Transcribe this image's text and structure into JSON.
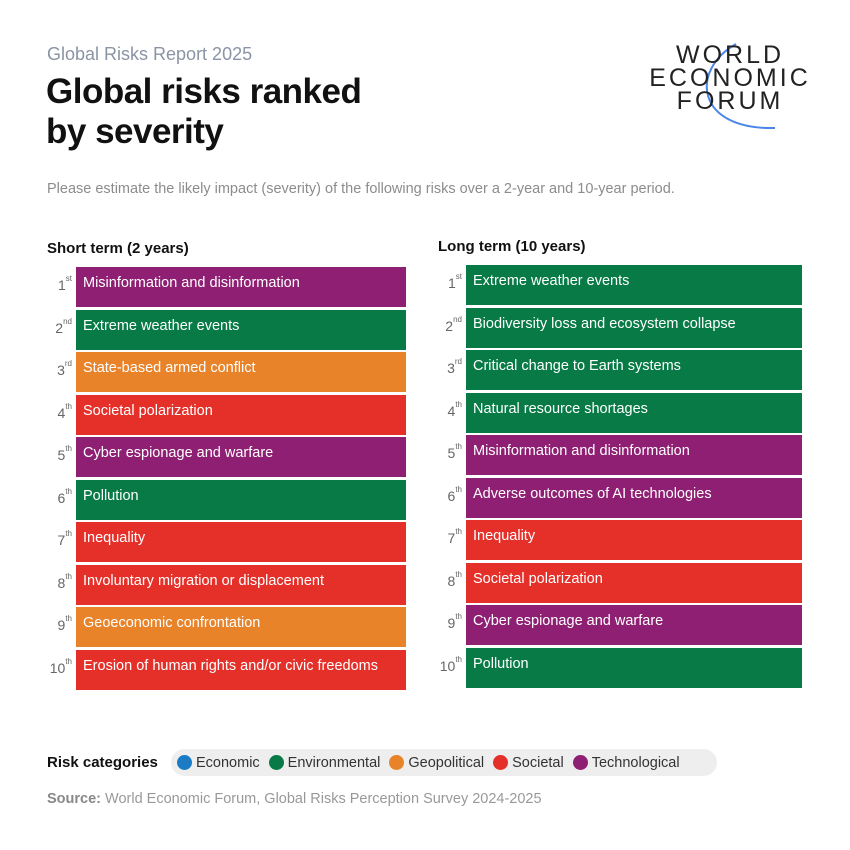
{
  "header": {
    "subtitle": "Global Risks Report 2025",
    "title_line1": "Global risks ranked",
    "title_line2": "by severity",
    "logo": [
      "WORLD",
      "ECONOMIC",
      "FORUM"
    ]
  },
  "description": "Please estimate the likely impact (severity) of the following risks over a 2-year and 10-year period.",
  "categories": {
    "Economic": "#1b7bc4",
    "Environmental": "#077a46",
    "Geopolitical": "#e8832a",
    "Societal": "#e5302a",
    "Technological": "#8e1f73"
  },
  "short_term": {
    "heading": "Short term (2 years)",
    "items": [
      {
        "rank": "1",
        "suffix": "st",
        "label": "Misinformation and disinformation",
        "category": "Technological"
      },
      {
        "rank": "2",
        "suffix": "nd",
        "label": "Extreme weather events",
        "category": "Environmental"
      },
      {
        "rank": "3",
        "suffix": "rd",
        "label": "State-based armed conflict",
        "category": "Geopolitical"
      },
      {
        "rank": "4",
        "suffix": "th",
        "label": "Societal polarization",
        "category": "Societal"
      },
      {
        "rank": "5",
        "suffix": "th",
        "label": "Cyber espionage and warfare",
        "category": "Technological"
      },
      {
        "rank": "6",
        "suffix": "th",
        "label": "Pollution",
        "category": "Environmental"
      },
      {
        "rank": "7",
        "suffix": "th",
        "label": "Inequality",
        "category": "Societal"
      },
      {
        "rank": "8",
        "suffix": "th",
        "label": "Involuntary migration or displacement",
        "category": "Societal"
      },
      {
        "rank": "9",
        "suffix": "th",
        "label": "Geoeconomic confrontation",
        "category": "Geopolitical"
      },
      {
        "rank": "10",
        "suffix": "th",
        "label": "Erosion of human rights and/or civic freedoms",
        "category": "Societal"
      }
    ]
  },
  "long_term": {
    "heading": "Long term (10 years)",
    "items": [
      {
        "rank": "1",
        "suffix": "st",
        "label": "Extreme weather events",
        "category": "Environmental"
      },
      {
        "rank": "2",
        "suffix": "nd",
        "label": "Biodiversity loss and ecosystem collapse",
        "category": "Environmental"
      },
      {
        "rank": "3",
        "suffix": "rd",
        "label": "Critical change to Earth systems",
        "category": "Environmental"
      },
      {
        "rank": "4",
        "suffix": "th",
        "label": "Natural resource shortages",
        "category": "Environmental"
      },
      {
        "rank": "5",
        "suffix": "th",
        "label": "Misinformation and disinformation",
        "category": "Technological"
      },
      {
        "rank": "6",
        "suffix": "th",
        "label": "Adverse outcomes of AI technologies",
        "category": "Technological"
      },
      {
        "rank": "7",
        "suffix": "th",
        "label": "Inequality",
        "category": "Societal"
      },
      {
        "rank": "8",
        "suffix": "th",
        "label": "Societal polarization",
        "category": "Societal"
      },
      {
        "rank": "9",
        "suffix": "th",
        "label": "Cyber espionage and warfare",
        "category": "Technological"
      },
      {
        "rank": "10",
        "suffix": "th",
        "label": "Pollution",
        "category": "Environmental"
      }
    ]
  },
  "legend": {
    "label": "Risk categories",
    "items": [
      "Economic",
      "Environmental",
      "Geopolitical",
      "Societal",
      "Technological"
    ]
  },
  "source": {
    "label": "Source:",
    "text": " World Economic Forum, Global Risks Perception Survey 2024-2025"
  }
}
